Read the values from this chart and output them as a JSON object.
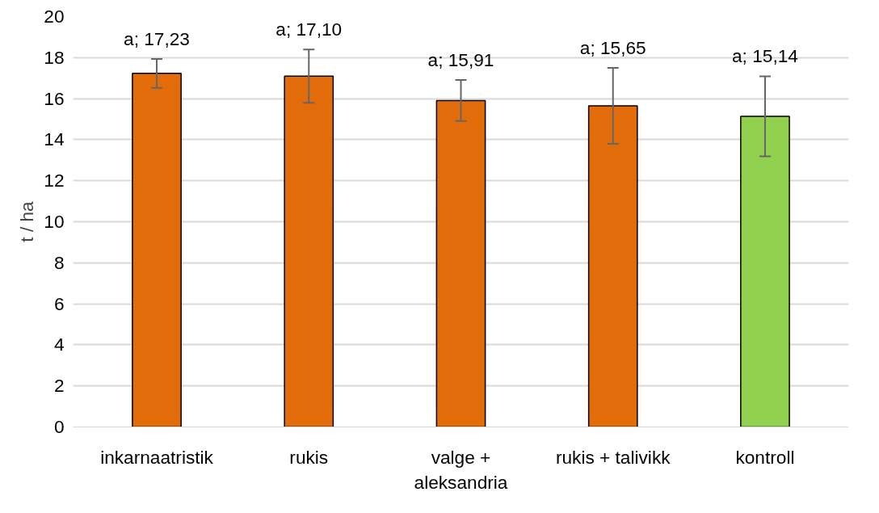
{
  "chart_data": {
    "type": "bar",
    "ylabel": "t / ha",
    "categories": [
      "inkarnaatristik",
      "rukis",
      "valge + aleksandria",
      "rukis + talivikk",
      "kontroll"
    ],
    "values": [
      17.23,
      17.1,
      15.91,
      15.65,
      15.14
    ],
    "colors": [
      "#e36c0a",
      "#e36c0a",
      "#e36c0a",
      "#e36c0a",
      "#92d050"
    ],
    "errors": [
      0.7,
      1.3,
      1.0,
      1.85,
      1.95
    ],
    "value_labels": [
      "a; 17,23",
      "a; 17,10",
      "a; 15,91",
      "a; 15,65",
      "a; 15,14"
    ],
    "ylim": [
      0,
      20
    ],
    "yticks": [
      0,
      2,
      4,
      6,
      8,
      10,
      12,
      14,
      16,
      18,
      20
    ],
    "grid": "y"
  }
}
